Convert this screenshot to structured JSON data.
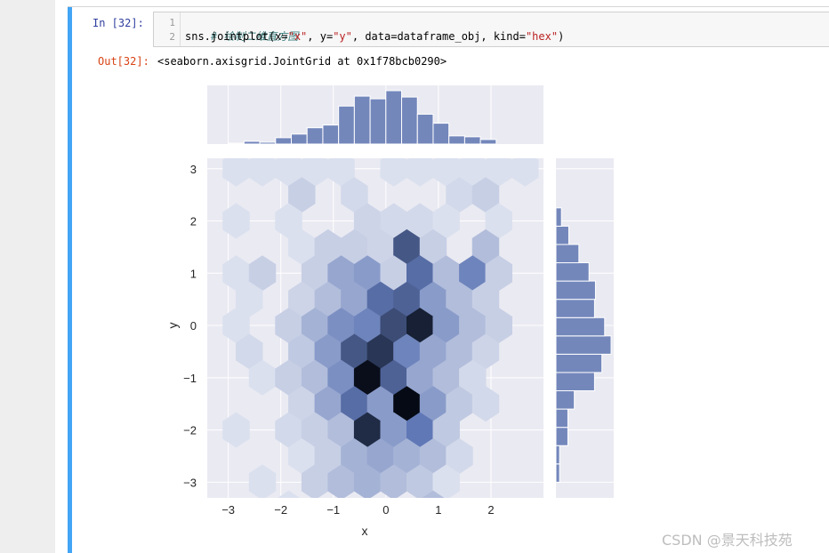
{
  "cell": {
    "in_prompt": "In  [32]:",
    "out_prompt": "Out[32]:",
    "line_numbers": [
      "1",
      "2"
    ],
    "code_comment": "# 绘制二维直方图",
    "code_line2": {
      "a": "sns.jointplot(x=",
      "s1": "\"x\"",
      "b": ", y=",
      "s2": "\"y\"",
      "c": ", data=dataframe_obj, kind=",
      "s3": "\"hex\"",
      "d": ")"
    },
    "output_text": "<seaborn.axisgrid.JointGrid at 0x1f78bcb0290>"
  },
  "watermark": "CSDN @景天科技苑",
  "colors": {
    "accent_bar": "#42a5f5",
    "plot_bg": "#eaeaf2",
    "hist_fill": "#7387bb",
    "hex_dark": "#050a14"
  },
  "chart_data": {
    "type": "heatmap",
    "kind": "hexbin jointplot",
    "xlabel": "x",
    "ylabel": "y",
    "xlim": [
      -3.4,
      3.0
    ],
    "ylim": [
      -3.3,
      3.2
    ],
    "x_ticks": [
      -3,
      -2,
      -1,
      0,
      1,
      2
    ],
    "y_ticks": [
      -3,
      -2,
      -1,
      0,
      1,
      2,
      3
    ],
    "grid": true,
    "marginal_x": {
      "bin_edges": [
        -3.0,
        -2.7,
        -2.4,
        -2.1,
        -1.8,
        -1.5,
        -1.2,
        -0.9,
        -0.6,
        -0.3,
        0.0,
        0.3,
        0.6,
        0.9,
        1.2,
        1.5,
        1.8,
        2.1,
        2.4
      ],
      "counts": [
        1,
        3,
        2,
        7,
        11,
        18,
        21,
        42,
        53,
        50,
        59,
        52,
        33,
        23,
        9,
        8,
        5,
        0
      ]
    },
    "marginal_y": {
      "bin_edges": [
        -3.0,
        -2.65,
        -2.3,
        -1.95,
        -1.6,
        -1.25,
        -0.9,
        -0.55,
        -0.2,
        0.15,
        0.5,
        0.85,
        1.2,
        1.55,
        1.9,
        2.25
      ],
      "counts": [
        4,
        4,
        13,
        13,
        20,
        42,
        50,
        60,
        53,
        42,
        43,
        36,
        25,
        14,
        6
      ]
    },
    "hex_cells": [
      {
        "x": -2.85,
        "y": 3.0,
        "c": 0.05
      },
      {
        "x": -2.35,
        "y": 3.0,
        "c": 0.05
      },
      {
        "x": -1.85,
        "y": 3.0,
        "c": 0.05
      },
      {
        "x": -1.35,
        "y": 3.0,
        "c": 0.05
      },
      {
        "x": -0.85,
        "y": 3.0,
        "c": 0.05
      },
      {
        "x": 0.15,
        "y": 3.0,
        "c": 0.05
      },
      {
        "x": 0.65,
        "y": 3.0,
        "c": 0.05
      },
      {
        "x": 1.15,
        "y": 3.0,
        "c": 0.05
      },
      {
        "x": 1.65,
        "y": 3.0,
        "c": 0.05
      },
      {
        "x": 2.15,
        "y": 3.0,
        "c": 0.05
      },
      {
        "x": 2.65,
        "y": 3.0,
        "c": 0.05
      },
      {
        "x": -1.6,
        "y": 2.5,
        "c": 0.12
      },
      {
        "x": -0.6,
        "y": 2.5,
        "c": 0.08
      },
      {
        "x": 1.4,
        "y": 2.5,
        "c": 0.08
      },
      {
        "x": 1.9,
        "y": 2.5,
        "c": 0.12
      },
      {
        "x": -2.85,
        "y": 2.0,
        "c": 0.05
      },
      {
        "x": -1.85,
        "y": 2.0,
        "c": 0.05
      },
      {
        "x": -0.35,
        "y": 2.0,
        "c": 0.1
      },
      {
        "x": 0.15,
        "y": 2.0,
        "c": 0.08
      },
      {
        "x": 0.65,
        "y": 2.0,
        "c": 0.08
      },
      {
        "x": 1.15,
        "y": 2.0,
        "c": 0.05
      },
      {
        "x": 2.15,
        "y": 2.0,
        "c": 0.05
      },
      {
        "x": -1.6,
        "y": 1.5,
        "c": 0.05
      },
      {
        "x": -1.1,
        "y": 1.5,
        "c": 0.12
      },
      {
        "x": -0.6,
        "y": 1.5,
        "c": 0.12
      },
      {
        "x": -0.1,
        "y": 1.5,
        "c": 0.1
      },
      {
        "x": 0.4,
        "y": 1.5,
        "c": 0.65
      },
      {
        "x": 0.9,
        "y": 1.5,
        "c": 0.12
      },
      {
        "x": 1.9,
        "y": 1.5,
        "c": 0.2
      },
      {
        "x": -2.85,
        "y": 1.0,
        "c": 0.05
      },
      {
        "x": -2.35,
        "y": 1.0,
        "c": 0.12
      },
      {
        "x": -1.35,
        "y": 1.0,
        "c": 0.12
      },
      {
        "x": -0.85,
        "y": 1.0,
        "c": 0.3
      },
      {
        "x": -0.35,
        "y": 1.0,
        "c": 0.35
      },
      {
        "x": 0.15,
        "y": 1.0,
        "c": 0.12
      },
      {
        "x": 0.65,
        "y": 1.0,
        "c": 0.55
      },
      {
        "x": 1.15,
        "y": 1.0,
        "c": 0.2
      },
      {
        "x": 1.65,
        "y": 1.0,
        "c": 0.45
      },
      {
        "x": 2.15,
        "y": 1.0,
        "c": 0.12
      },
      {
        "x": -2.6,
        "y": 0.5,
        "c": 0.05
      },
      {
        "x": -1.6,
        "y": 0.5,
        "c": 0.1
      },
      {
        "x": -1.1,
        "y": 0.5,
        "c": 0.2
      },
      {
        "x": -0.6,
        "y": 0.5,
        "c": 0.3
      },
      {
        "x": -0.1,
        "y": 0.5,
        "c": 0.55
      },
      {
        "x": 0.4,
        "y": 0.5,
        "c": 0.6
      },
      {
        "x": 0.9,
        "y": 0.5,
        "c": 0.35
      },
      {
        "x": 1.4,
        "y": 0.5,
        "c": 0.2
      },
      {
        "x": 1.9,
        "y": 0.5,
        "c": 0.12
      },
      {
        "x": -2.85,
        "y": 0.0,
        "c": 0.05
      },
      {
        "x": -1.85,
        "y": 0.0,
        "c": 0.12
      },
      {
        "x": -1.35,
        "y": 0.0,
        "c": 0.25
      },
      {
        "x": -0.85,
        "y": 0.0,
        "c": 0.4
      },
      {
        "x": -0.35,
        "y": 0.0,
        "c": 0.45
      },
      {
        "x": 0.15,
        "y": 0.0,
        "c": 0.7
      },
      {
        "x": 0.65,
        "y": 0.0,
        "c": 0.9
      },
      {
        "x": 1.15,
        "y": 0.0,
        "c": 0.35
      },
      {
        "x": 1.65,
        "y": 0.0,
        "c": 0.2
      },
      {
        "x": 2.15,
        "y": 0.0,
        "c": 0.12
      },
      {
        "x": -2.6,
        "y": -0.5,
        "c": 0.08
      },
      {
        "x": -1.6,
        "y": -0.5,
        "c": 0.15
      },
      {
        "x": -1.1,
        "y": -0.5,
        "c": 0.35
      },
      {
        "x": -0.6,
        "y": -0.5,
        "c": 0.65
      },
      {
        "x": -0.1,
        "y": -0.5,
        "c": 0.8
      },
      {
        "x": 0.4,
        "y": -0.5,
        "c": 0.45
      },
      {
        "x": 0.9,
        "y": -0.5,
        "c": 0.3
      },
      {
        "x": 1.4,
        "y": -0.5,
        "c": 0.2
      },
      {
        "x": 1.9,
        "y": -0.5,
        "c": 0.1
      },
      {
        "x": -2.35,
        "y": -1.0,
        "c": 0.05
      },
      {
        "x": -1.85,
        "y": -1.0,
        "c": 0.12
      },
      {
        "x": -1.35,
        "y": -1.0,
        "c": 0.2
      },
      {
        "x": -0.85,
        "y": -1.0,
        "c": 0.4
      },
      {
        "x": -0.35,
        "y": -1.0,
        "c": 0.98
      },
      {
        "x": 0.15,
        "y": -1.0,
        "c": 0.6
      },
      {
        "x": 0.65,
        "y": -1.0,
        "c": 0.3
      },
      {
        "x": 1.15,
        "y": -1.0,
        "c": 0.2
      },
      {
        "x": 1.65,
        "y": -1.0,
        "c": 0.08
      },
      {
        "x": -1.6,
        "y": -1.5,
        "c": 0.1
      },
      {
        "x": -1.1,
        "y": -1.5,
        "c": 0.3
      },
      {
        "x": -0.6,
        "y": -1.5,
        "c": 0.55
      },
      {
        "x": -0.1,
        "y": -1.5,
        "c": 0.35
      },
      {
        "x": 0.4,
        "y": -1.5,
        "c": 1.0
      },
      {
        "x": 0.9,
        "y": -1.5,
        "c": 0.35
      },
      {
        "x": 1.4,
        "y": -1.5,
        "c": 0.15
      },
      {
        "x": 1.9,
        "y": -1.5,
        "c": 0.08
      },
      {
        "x": -2.85,
        "y": -2.0,
        "c": 0.05
      },
      {
        "x": -1.85,
        "y": -2.0,
        "c": 0.08
      },
      {
        "x": -1.35,
        "y": -2.0,
        "c": 0.12
      },
      {
        "x": -0.85,
        "y": -2.0,
        "c": 0.2
      },
      {
        "x": -0.35,
        "y": -2.0,
        "c": 0.85
      },
      {
        "x": 0.15,
        "y": -2.0,
        "c": 0.35
      },
      {
        "x": 0.65,
        "y": -2.0,
        "c": 0.5
      },
      {
        "x": 1.15,
        "y": -2.0,
        "c": 0.15
      },
      {
        "x": -1.6,
        "y": -2.5,
        "c": 0.05
      },
      {
        "x": -1.1,
        "y": -2.5,
        "c": 0.12
      },
      {
        "x": -0.6,
        "y": -2.5,
        "c": 0.25
      },
      {
        "x": -0.1,
        "y": -2.5,
        "c": 0.3
      },
      {
        "x": 0.4,
        "y": -2.5,
        "c": 0.25
      },
      {
        "x": 0.9,
        "y": -2.5,
        "c": 0.2
      },
      {
        "x": 1.4,
        "y": -2.5,
        "c": 0.08
      },
      {
        "x": -2.35,
        "y": -3.0,
        "c": 0.05
      },
      {
        "x": -1.35,
        "y": -3.0,
        "c": 0.12
      },
      {
        "x": -0.85,
        "y": -3.0,
        "c": 0.2
      },
      {
        "x": -0.35,
        "y": -3.0,
        "c": 0.25
      },
      {
        "x": 0.15,
        "y": -3.0,
        "c": 0.2
      },
      {
        "x": 0.65,
        "y": -3.0,
        "c": 0.15
      },
      {
        "x": 1.15,
        "y": -3.0,
        "c": 0.05
      },
      {
        "x": -1.85,
        "y": -3.5,
        "c": 0.05
      },
      {
        "x": 0.9,
        "y": -3.5,
        "c": 0.2
      }
    ]
  }
}
